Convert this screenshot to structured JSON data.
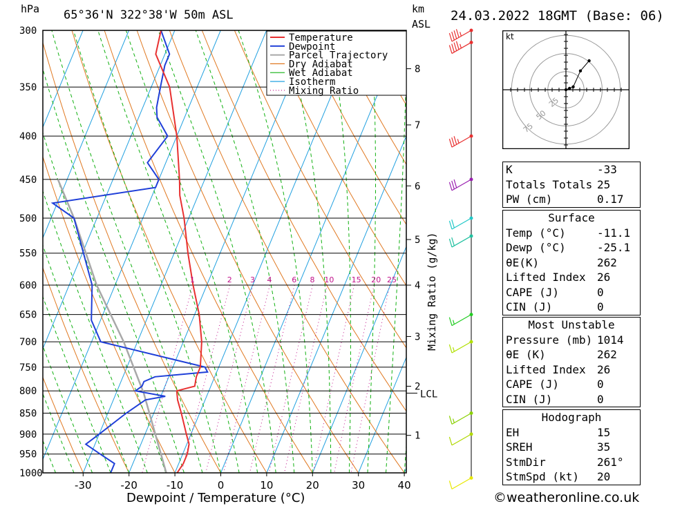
{
  "header": {
    "pressure_unit": "hPa",
    "location": "65°36'N 322°38'W 50m ASL",
    "km_label": "km",
    "asl_label": "ASL",
    "datetime": "24.03.2022 18GMT (Base: 06)"
  },
  "chart_data": {
    "type": "skew-t",
    "title": "65°36'N 322°38'W 50m ASL",
    "xlabel": "Dewpoint / Temperature (°C)",
    "ylabel": "hPa",
    "x_ticks": [
      -30,
      -20,
      -10,
      0,
      10,
      20,
      30,
      40
    ],
    "x_range": [
      -40,
      40
    ],
    "pressure_levels": [
      300,
      350,
      400,
      450,
      500,
      550,
      600,
      650,
      700,
      750,
      800,
      850,
      900,
      950,
      1000
    ],
    "height_km_ticks": [
      {
        "label": "1",
        "p": 903
      },
      {
        "label": "2",
        "p": 790
      },
      {
        "label": "3",
        "p": 690
      },
      {
        "label": "4",
        "p": 600
      },
      {
        "label": "5",
        "p": 530
      },
      {
        "label": "6",
        "p": 458
      },
      {
        "label": "7",
        "p": 388
      },
      {
        "label": "8",
        "p": 333
      }
    ],
    "lcl": {
      "label": "LCL",
      "p": 805
    },
    "mixing_ratio_label": "Mixing Ratio (g/kg)",
    "mixing_ratio_values": [
      "1",
      "2",
      "3",
      "4",
      "6",
      "8",
      "10",
      "15",
      "20",
      "25"
    ],
    "legend": [
      "Temperature",
      "Dewpoint",
      "Parcel Trajectory",
      "Dry Adiabat",
      "Wet Adiabat",
      "Isotherm",
      "Mixing Ratio"
    ],
    "temperature_series": [
      [
        1014,
        -11.1
      ],
      [
        1000,
        -9.5
      ],
      [
        975,
        -9
      ],
      [
        950,
        -9
      ],
      [
        925,
        -9.5
      ],
      [
        900,
        -11
      ],
      [
        850,
        -14
      ],
      [
        820,
        -16
      ],
      [
        800,
        -17
      ],
      [
        790,
        -13.5
      ],
      [
        770,
        -14
      ],
      [
        750,
        -14
      ],
      [
        700,
        -16
      ],
      [
        650,
        -19
      ],
      [
        600,
        -23
      ],
      [
        550,
        -27
      ],
      [
        500,
        -31
      ],
      [
        470,
        -34
      ],
      [
        450,
        -35.5
      ],
      [
        400,
        -40
      ],
      [
        350,
        -46
      ],
      [
        320,
        -52
      ],
      [
        300,
        -53
      ]
    ],
    "dewpoint_series": [
      [
        1014,
        -25.1
      ],
      [
        1000,
        -24
      ],
      [
        975,
        -24
      ],
      [
        950,
        -28
      ],
      [
        925,
        -32
      ],
      [
        900,
        -30
      ],
      [
        850,
        -26
      ],
      [
        820,
        -23
      ],
      [
        812,
        -19
      ],
      [
        800,
        -26
      ],
      [
        790,
        -25
      ],
      [
        780,
        -25
      ],
      [
        770,
        -23
      ],
      [
        760,
        -12
      ],
      [
        750,
        -13
      ],
      [
        700,
        -38
      ],
      [
        660,
        -42
      ],
      [
        600,
        -45
      ],
      [
        500,
        -55
      ],
      [
        480,
        -61
      ],
      [
        460,
        -40
      ],
      [
        450,
        -40
      ],
      [
        430,
        -44
      ],
      [
        400,
        -42
      ],
      [
        380,
        -46
      ],
      [
        370,
        -47
      ],
      [
        350,
        -48
      ],
      [
        330,
        -49
      ],
      [
        320,
        -49
      ],
      [
        300,
        -53
      ]
    ],
    "parcel_series": [
      [
        1014,
        -11.1
      ],
      [
        805,
        -24
      ],
      [
        700,
        -33
      ],
      [
        600,
        -44
      ],
      [
        500,
        -55
      ],
      [
        450,
        -62
      ]
    ],
    "wind_barbs": [
      {
        "p": 1014,
        "speed_kt": 10,
        "color": "#e8e800"
      },
      {
        "p": 900,
        "speed_kt": 10,
        "color": "#b0d800"
      },
      {
        "p": 850,
        "speed_kt": 15,
        "color": "#8ad000"
      },
      {
        "p": 700,
        "speed_kt": 15,
        "color": "#b0e000"
      },
      {
        "p": 650,
        "speed_kt": 15,
        "color": "#22cc22"
      },
      {
        "p": 525,
        "speed_kt": 20,
        "color": "#20c0a0"
      },
      {
        "p": 500,
        "speed_kt": 20,
        "color": "#20c8c8"
      },
      {
        "p": 450,
        "speed_kt": 30,
        "color": "#9a1fb0"
      },
      {
        "p": 400,
        "speed_kt": 35,
        "color": "#e83030"
      },
      {
        "p": 310,
        "speed_kt": 45,
        "color": "#e83030"
      },
      {
        "p": 300,
        "speed_kt": 45,
        "color": "#e83030"
      }
    ],
    "hodograph": {
      "units_label": "kt",
      "ring_labels": [
        "25",
        "50",
        "75"
      ],
      "points_kt": [
        [
          0,
          0
        ],
        [
          5,
          2
        ],
        [
          10,
          4
        ],
        [
          20,
          26
        ],
        [
          32,
          40
        ]
      ]
    }
  },
  "indices": {
    "general": [
      {
        "label": "K",
        "value": "-33"
      },
      {
        "label": "Totals Totals",
        "value": "25"
      },
      {
        "label": "PW (cm)",
        "value": "0.17"
      }
    ],
    "surface_title": "Surface",
    "surface": [
      {
        "label": "Temp (°C)",
        "value": "-11.1"
      },
      {
        "label": "Dewp (°C)",
        "value": "-25.1"
      },
      {
        "label": "θE(K)",
        "value": "262"
      },
      {
        "label": "Lifted Index",
        "value": "26"
      },
      {
        "label": "CAPE (J)",
        "value": "0"
      },
      {
        "label": "CIN (J)",
        "value": "0"
      }
    ],
    "mu_title": "Most Unstable",
    "mu": [
      {
        "label": "Pressure (mb)",
        "value": "1014"
      },
      {
        "label": "θE (K)",
        "value": "262"
      },
      {
        "label": "Lifted Index",
        "value": "26"
      },
      {
        "label": "CAPE (J)",
        "value": "0"
      },
      {
        "label": "CIN (J)",
        "value": "0"
      }
    ],
    "hodo_title": "Hodograph",
    "hodo": [
      {
        "label": "EH",
        "value": "15"
      },
      {
        "label": "SREH",
        "value": "35"
      },
      {
        "label": "StmDir",
        "value": "261°"
      },
      {
        "label": "StmSpd (kt)",
        "value": "20"
      }
    ]
  },
  "footer": {
    "copyright": "©weatheronline.co.uk"
  },
  "colors": {
    "temperature": "#e83030",
    "dewpoint": "#1f3fd8",
    "parcel": "#a8a8a8",
    "dry_adiabat": "#e07820",
    "wet_adiabat": "#10b010",
    "isotherm": "#20a0e0",
    "mixing_ratio": "#c0108a"
  }
}
